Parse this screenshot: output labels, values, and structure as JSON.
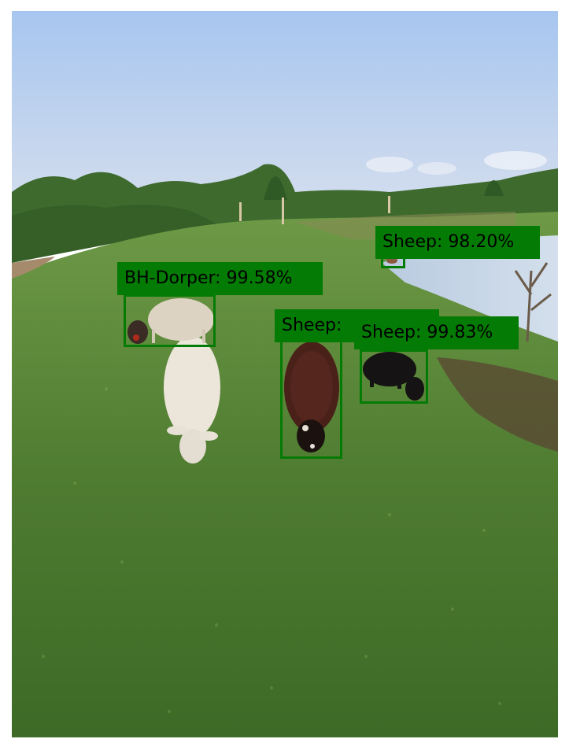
{
  "scene": {
    "description_colors": {
      "sky_top": "#a9c9f0",
      "sky_bottom": "#d6e0ef",
      "grass_dark": "#3e6b25",
      "grass_light": "#6f9a44",
      "water": "#c7d6e6",
      "trees": "#3f6a2f"
    }
  },
  "annotation": {
    "box_color": "#047b04",
    "label_text_color": "#000000",
    "detections": [
      {
        "id": "dorper",
        "label": "BH-Dorper: 99.58%"
      },
      {
        "id": "brown",
        "label": "Sheep: "
      },
      {
        "id": "black",
        "label": "Sheep: 99.83%"
      },
      {
        "id": "far",
        "label": "Sheep: 98.20%"
      }
    ]
  }
}
